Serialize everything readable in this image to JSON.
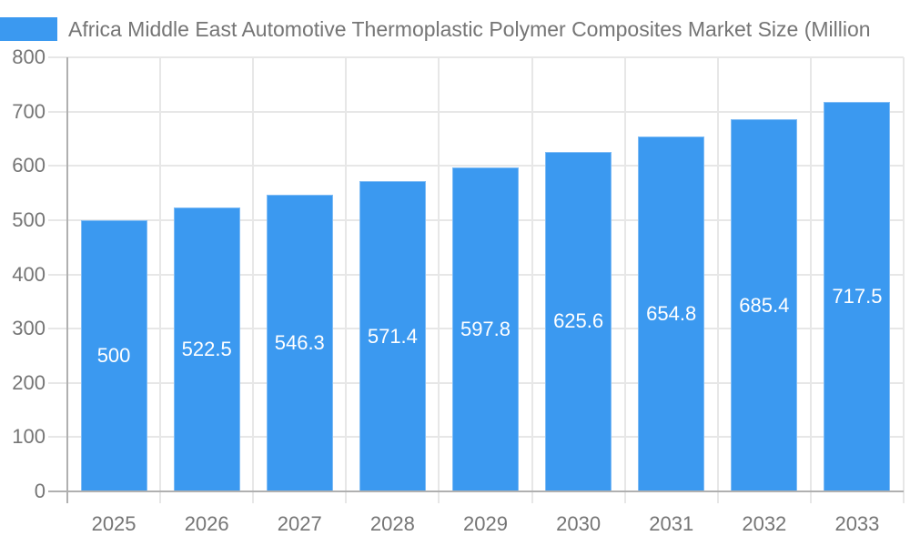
{
  "chart_data": {
    "type": "bar",
    "title": "Africa Middle East Automotive Thermoplastic Polymer Composites Market Size (Million",
    "categories": [
      "2025",
      "2026",
      "2027",
      "2028",
      "2029",
      "2030",
      "2031",
      "2032",
      "2033"
    ],
    "values": [
      500,
      522.5,
      546.3,
      571.4,
      597.8,
      625.6,
      654.8,
      685.4,
      717.5
    ],
    "xlabel": "",
    "ylabel": "",
    "ylim": [
      0,
      800
    ],
    "ytick_interval": 100,
    "yticks": [
      0,
      100,
      200,
      300,
      400,
      500,
      600,
      700,
      800
    ],
    "grid": true,
    "legend_position": "top-left",
    "colors": {
      "bar_fill": "#3B99F0",
      "grid_line": "#E7E7E7",
      "axis_line": "#B0B0B0",
      "tick_text": "#757575",
      "title_text": "#757575",
      "bar_value_text": "#FFFFFF",
      "background": "#FFFFFF"
    }
  }
}
